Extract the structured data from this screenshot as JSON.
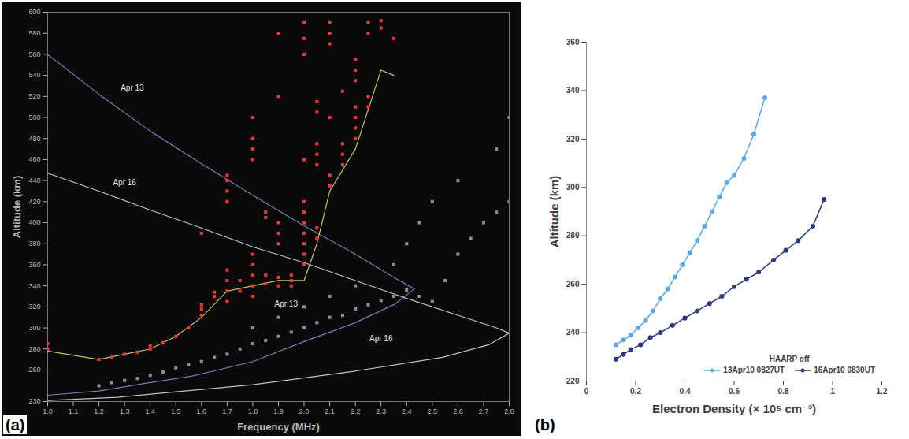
{
  "chart_data": [
    {
      "type": "scatter",
      "label": "(a)",
      "x_label": "Frequency (MHz)",
      "y_label": "Altitude (km)",
      "xlim": [
        1.0,
        2.8
      ],
      "xticks": [
        {
          "value": 1.0,
          "label": "1.0"
        },
        1.1,
        1.2,
        1.3,
        1.4,
        1.5,
        1.6,
        1.7,
        1.8,
        1.9,
        {
          "value": 2.0,
          "label": "2.0"
        },
        2.1,
        2.2,
        2.3,
        2.4,
        2.5,
        2.6,
        2.7,
        2.8
      ],
      "ylim": [
        230,
        600
      ],
      "yticks": [
        230,
        260,
        280,
        300,
        320,
        340,
        360,
        380,
        400,
        420,
        440,
        460,
        480,
        500,
        520,
        540,
        560,
        580,
        600
      ],
      "grid": false,
      "series": [
        {
          "type": "line",
          "color": "#7080b0",
          "x": [
            1.0,
            1.2,
            1.4,
            1.6,
            1.8,
            2.0,
            2.2,
            2.35,
            2.43,
            2.35,
            2.2,
            2.0,
            1.8,
            1.56,
            1.4,
            1.2,
            1.0
          ],
          "values": [
            560,
            522,
            487,
            456,
            426,
            397,
            370,
            348,
            337,
            322,
            305,
            287,
            268,
            254,
            248,
            240,
            236
          ]
        },
        {
          "type": "line",
          "color": "#c0c0c8",
          "x": [
            1.0,
            1.2,
            1.4,
            1.6,
            1.8,
            2.0,
            2.2,
            2.4,
            2.6,
            2.75,
            2.8,
            2.72,
            2.54,
            2.2,
            1.8,
            1.27,
            1.0
          ],
          "values": [
            447,
            430,
            412,
            395,
            377,
            362,
            345,
            328,
            312,
            300,
            295,
            284,
            272,
            259,
            246,
            234,
            231
          ]
        },
        {
          "type": "line",
          "color": "#c8c060",
          "x": [
            1.0,
            1.2,
            1.3,
            1.4,
            1.5,
            1.6,
            1.7,
            1.8,
            1.9,
            2.0,
            2.05,
            2.1,
            2.2,
            2.3,
            2.35
          ],
          "values": [
            278,
            270,
            275,
            280,
            292,
            310,
            335,
            340,
            345,
            345,
            380,
            430,
            470,
            545,
            540
          ]
        },
        {
          "type": "scatter",
          "color": "#8a8a9a",
          "marker": "square",
          "x": [
            1.2,
            1.25,
            1.3,
            1.35,
            1.4,
            1.45,
            1.5,
            1.55,
            1.6,
            1.65,
            1.7,
            1.75,
            1.8,
            1.8,
            1.85,
            1.9,
            1.9,
            1.95,
            2.0,
            2.0,
            2.05,
            2.1,
            2.1,
            2.15,
            2.2,
            2.2,
            2.25,
            2.3,
            2.35,
            2.35,
            2.4,
            2.4,
            2.45,
            2.45,
            2.5,
            2.5,
            2.55,
            2.6,
            2.6,
            2.65,
            2.7,
            2.75,
            2.75,
            2.8,
            2.8
          ],
          "values": [
            245,
            248,
            250,
            252,
            255,
            258,
            262,
            265,
            268,
            272,
            275,
            280,
            285,
            300,
            288,
            292,
            310,
            296,
            300,
            320,
            305,
            310,
            330,
            312,
            318,
            340,
            322,
            326,
            330,
            360,
            336,
            380,
            330,
            400,
            325,
            420,
            345,
            370,
            440,
            385,
            400,
            410,
            470,
            420,
            500
          ]
        },
        {
          "type": "scatter",
          "color": "#e8383a",
          "marker": "square",
          "x": [
            1.0,
            1.0,
            1.2,
            1.25,
            1.3,
            1.35,
            1.4,
            1.4,
            1.45,
            1.5,
            1.55,
            1.6,
            1.6,
            1.6,
            1.6,
            1.65,
            1.65,
            1.7,
            1.7,
            1.7,
            1.7,
            1.7,
            1.7,
            1.7,
            1.7,
            1.75,
            1.75,
            1.8,
            1.8,
            1.8,
            1.8,
            1.8,
            1.8,
            1.8,
            1.8,
            1.8,
            1.85,
            1.85,
            1.85,
            1.85,
            1.9,
            1.9,
            1.9,
            1.9,
            1.9,
            1.9,
            1.9,
            1.95,
            1.95,
            1.95,
            2.0,
            2.0,
            2.0,
            2.0,
            2.0,
            2.0,
            2.0,
            2.0,
            2.0,
            2.0,
            2.0,
            2.05,
            2.05,
            2.05,
            2.05,
            2.05,
            2.05,
            2.05,
            2.1,
            2.1,
            2.1,
            2.1,
            2.1,
            2.1,
            2.15,
            2.15,
            2.15,
            2.15,
            2.2,
            2.2,
            2.2,
            2.2,
            2.2,
            2.2,
            2.2,
            2.25,
            2.25,
            2.25,
            2.25,
            2.3,
            2.3,
            2.35
          ],
          "values": [
            280,
            285,
            270,
            272,
            275,
            277,
            280,
            283,
            286,
            292,
            300,
            312,
            318,
            322,
            390,
            330,
            334,
            325,
            335,
            345,
            355,
            420,
            430,
            440,
            445,
            335,
            345,
            330,
            340,
            350,
            360,
            370,
            460,
            470,
            480,
            500,
            342,
            350,
            405,
            410,
            340,
            348,
            380,
            390,
            400,
            520,
            580,
            340,
            345,
            350,
            360,
            370,
            380,
            390,
            400,
            410,
            420,
            460,
            560,
            575,
            590,
            385,
            395,
            455,
            465,
            475,
            505,
            515,
            435,
            445,
            500,
            570,
            580,
            590,
            455,
            465,
            475,
            525,
            480,
            490,
            500,
            510,
            535,
            545,
            555,
            510,
            520,
            580,
            590,
            585,
            592,
            575
          ]
        }
      ],
      "annotations": [
        {
          "text": "Apr 13",
          "x": 1.33,
          "y": 528
        },
        {
          "text": "Apr 16",
          "x": 1.3,
          "y": 438
        },
        {
          "text": "Apr 13",
          "x": 1.93,
          "y": 323
        },
        {
          "text": "Apr 16",
          "x": 2.3,
          "y": 290
        }
      ]
    },
    {
      "type": "line",
      "label": "(b)",
      "x_label": "Electron Density (× 10⁵ cm⁻³)",
      "y_label": "Altitude (km)",
      "xlim": [
        0,
        1.2
      ],
      "xticks": [
        0,
        0.2,
        0.4,
        0.6,
        0.8,
        1,
        1.2
      ],
      "ylim": [
        220,
        360
      ],
      "yticks": [
        220,
        240,
        260,
        280,
        300,
        320,
        340,
        360
      ],
      "grid": false,
      "legend": "bottom-right",
      "legend_title": "HAARP off",
      "series": [
        {
          "name": "13Apr10 0827UT",
          "color": "#5aa9e6",
          "marker": "circle",
          "x": [
            0.12,
            0.15,
            0.18,
            0.21,
            0.24,
            0.27,
            0.3,
            0.33,
            0.36,
            0.39,
            0.42,
            0.45,
            0.48,
            0.51,
            0.54,
            0.57,
            0.6,
            0.64,
            0.68,
            0.725
          ],
          "values": [
            235,
            237,
            239,
            242,
            245,
            249,
            254,
            258,
            263,
            268,
            273,
            278,
            284,
            290,
            296,
            302,
            305,
            312,
            322,
            337
          ]
        },
        {
          "name": "16Apr10 0830UT",
          "color": "#2b3a80",
          "marker": "circle",
          "x": [
            0.12,
            0.15,
            0.18,
            0.22,
            0.26,
            0.3,
            0.35,
            0.4,
            0.45,
            0.5,
            0.55,
            0.6,
            0.65,
            0.7,
            0.76,
            0.81,
            0.86,
            0.92,
            0.965
          ],
          "values": [
            229,
            231,
            233,
            235,
            238,
            240,
            243,
            246,
            249,
            252,
            255,
            259,
            262,
            265,
            270,
            274,
            278,
            284,
            295
          ]
        }
      ]
    }
  ]
}
